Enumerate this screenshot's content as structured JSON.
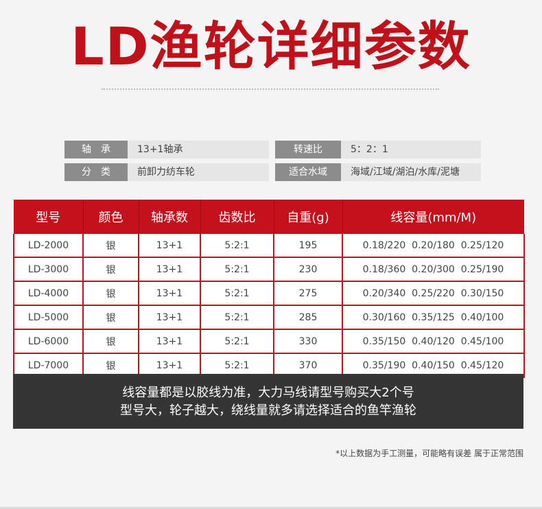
{
  "title": "LD渔轮详细参数",
  "specs": [
    {
      "key": "轴　承",
      "value": "13+1轴承"
    },
    {
      "key": "转速比",
      "value": "5：2：1"
    },
    {
      "key": "分　类",
      "value": "前卸力纺车轮"
    },
    {
      "key": "适合水域",
      "value": "海域/江域/湖泊/水库/泥塘"
    }
  ],
  "table": {
    "headers": [
      "型号",
      "颜色",
      "轴承数",
      "齿数比",
      "自重(g)",
      "线容量(mm/M)"
    ],
    "rows": [
      [
        "LD-2000",
        "银",
        "13+1",
        "5:2:1",
        "195",
        "0.18/220  0.20/180  0.25/120"
      ],
      [
        "LD-3000",
        "银",
        "13+1",
        "5:2:1",
        "230",
        "0.18/360  0.20/300  0.25/190"
      ],
      [
        "LD-4000",
        "银",
        "13+1",
        "5:2:1",
        "275",
        "0.20/340  0.25/220  0.30/150"
      ],
      [
        "LD-5000",
        "银",
        "13+1",
        "5:2:1",
        "285",
        "0.30/160  0.35/125  0.40/100"
      ],
      [
        "LD-6000",
        "银",
        "13+1",
        "5:2:1",
        "330",
        "0.35/150  0.40/120  0.45/100"
      ],
      [
        "LD-7000",
        "银",
        "13+1",
        "5:2:1",
        "370",
        "0.35/190  0.40/150  0.45/120"
      ]
    ]
  },
  "note": {
    "line1": "线容量都是以胶线为准，大力马线请型号购买大2个号",
    "line2": "型号大，轮子越大，绕线量就多请选择适合的鱼竿渔轮"
  },
  "footnote": "*以上数据为手工测量，可能略有误差 属于正常范围"
}
